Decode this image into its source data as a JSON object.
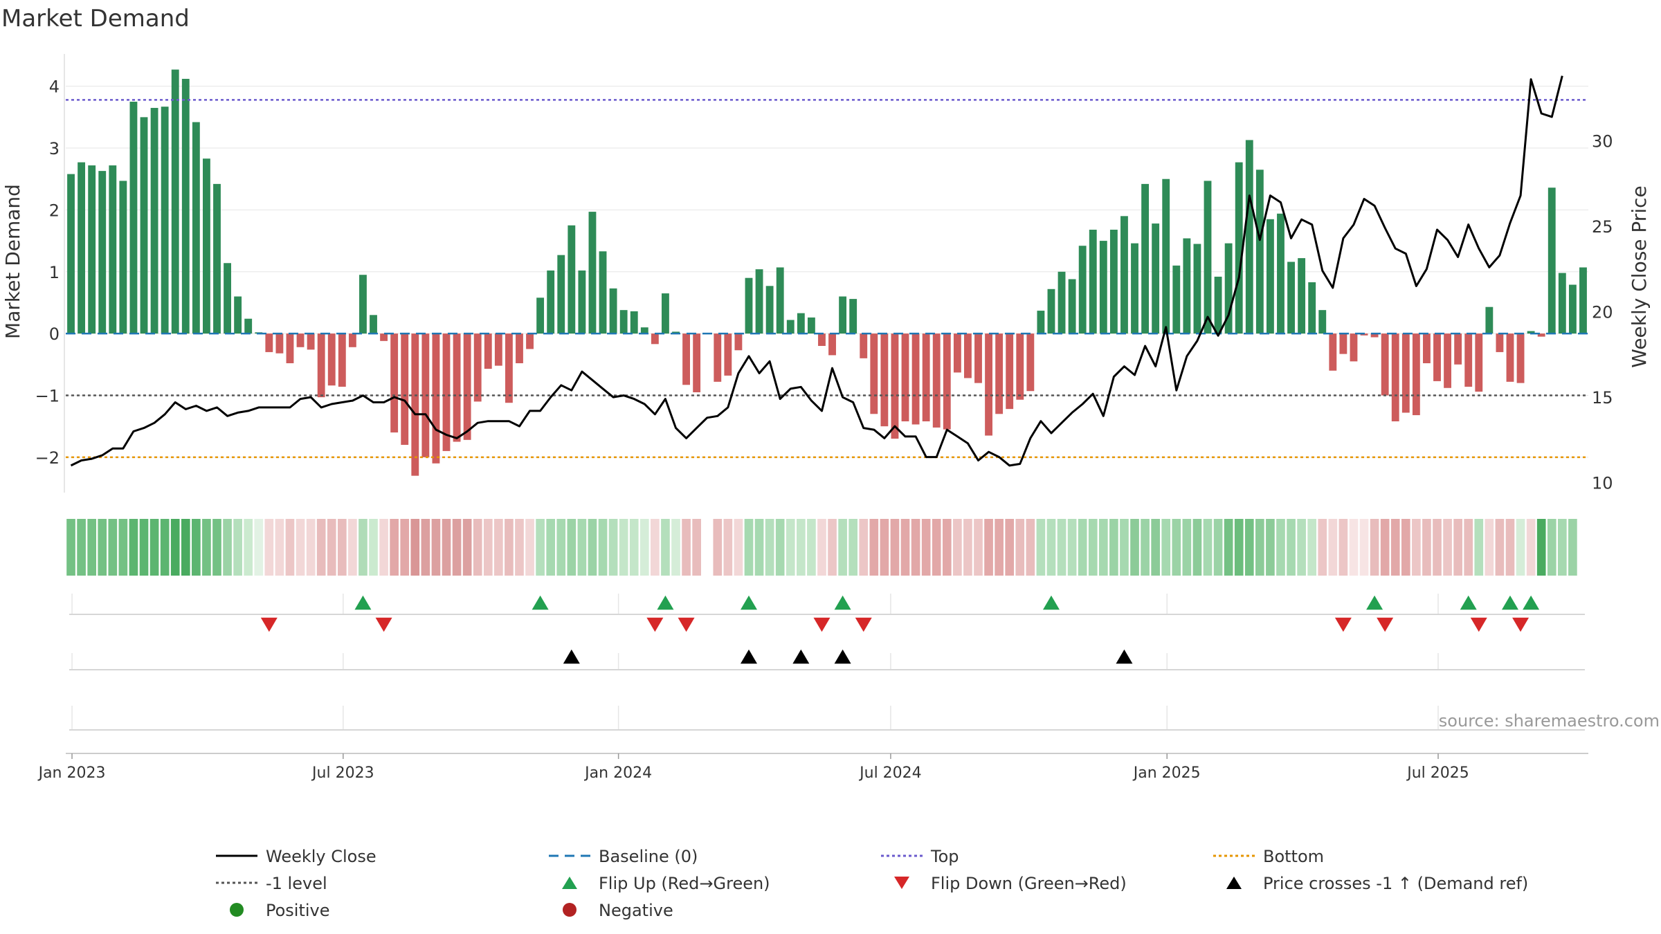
{
  "chart_data": {
    "type": "bar",
    "title": "Market Demand",
    "ylabel": "Market Demand",
    "y2label": "Weekly Close Price",
    "source": "source: sharemaestro.com",
    "ylim": [
      -2.55,
      4.5
    ],
    "y2lim": [
      9.5,
      35.0
    ],
    "yticks": [
      4,
      3,
      2,
      1,
      0,
      -1,
      -2
    ],
    "yticklabels": [
      "4",
      "3",
      "2",
      "1",
      "0",
      "−1",
      "−2"
    ],
    "y2ticks": [
      30,
      25,
      20,
      15,
      10
    ],
    "y2ticklabels": [
      "30",
      "25",
      "20",
      "15",
      "10"
    ],
    "xticks": [
      0.6,
      26.6,
      53.0,
      79.1,
      105.6,
      131.6
    ],
    "xticklabels": [
      "Jan 2023",
      "Jul 2023",
      "Jan 2024",
      "Jul 2024",
      "Jan 2025",
      "Jul 2025"
    ],
    "reference_lines": {
      "top": 3.78,
      "minus_one": -1.0,
      "bottom": -2.0,
      "baseline": 0
    },
    "colors": {
      "positive": "#2e8b57",
      "negative": "#cd5c5c",
      "close": "#000000",
      "baseline": "#1f77b4",
      "top": "#6a5acd",
      "minus_one": "#555555",
      "bottom": "#e69500",
      "flip_up": "#22a050",
      "flip_down": "#d62728",
      "cross": "#000000",
      "dot_positive": "#228b22",
      "dot_negative": "#b22222"
    },
    "demand": [
      2.58,
      2.77,
      2.72,
      2.63,
      2.72,
      2.47,
      3.75,
      3.5,
      3.65,
      3.67,
      4.27,
      4.12,
      3.42,
      2.83,
      2.42,
      1.14,
      0.6,
      0.24,
      0.02,
      -0.3,
      -0.32,
      -0.48,
      -0.22,
      -0.26,
      -1.03,
      -0.84,
      -0.86,
      -0.22,
      0.95,
      0.3,
      -0.12,
      -1.6,
      -1.8,
      -2.3,
      -2.0,
      -2.1,
      -1.9,
      -1.75,
      -1.72,
      -1.1,
      -0.57,
      -0.52,
      -1.12,
      -0.48,
      -0.25,
      0.58,
      1.02,
      1.27,
      1.75,
      1.02,
      1.97,
      1.33,
      0.73,
      0.38,
      0.36,
      0.1,
      -0.17,
      0.65,
      0.03,
      -0.83,
      -0.95,
      0,
      -0.78,
      -0.68,
      -0.27,
      0.9,
      1.04,
      0.77,
      1.07,
      0.22,
      0.33,
      0.26,
      -0.2,
      -0.35,
      0.6,
      0.56,
      -0.4,
      -1.3,
      -1.5,
      -1.7,
      -1.42,
      -1.47,
      -1.42,
      -1.52,
      -1.55,
      -0.63,
      -0.72,
      -0.8,
      -1.65,
      -1.3,
      -1.22,
      -1.07,
      -0.93,
      0.37,
      0.72,
      1.0,
      0.88,
      1.42,
      1.68,
      1.5,
      1.68,
      1.9,
      1.46,
      2.42,
      1.78,
      2.5,
      1.1,
      1.54,
      1.45,
      2.47,
      0.92,
      1.46,
      2.77,
      3.13,
      2.65,
      1.85,
      1.94,
      1.16,
      1.22,
      0.83,
      0.38,
      -0.6,
      -0.33,
      -0.45,
      -0.03,
      -0.06,
      -1.0,
      -1.42,
      -1.28,
      -1.32,
      -0.48,
      -0.77,
      -0.88,
      -0.5,
      -0.86,
      -0.94,
      0.43,
      -0.3,
      -0.78,
      -0.8,
      0.04,
      -0.05,
      2.36,
      0.98,
      0.79,
      1.07
    ],
    "close": [
      11.0,
      11.3,
      11.4,
      11.6,
      12.0,
      12.0,
      13.0,
      13.2,
      13.5,
      14.0,
      14.7,
      14.3,
      14.5,
      14.2,
      14.4,
      13.9,
      14.1,
      14.2,
      14.4,
      14.4,
      14.4,
      14.4,
      14.9,
      15.0,
      14.4,
      14.6,
      14.7,
      14.8,
      15.1,
      14.7,
      14.7,
      15.0,
      14.8,
      14.0,
      14.0,
      13.1,
      12.8,
      12.6,
      13.0,
      13.5,
      13.6,
      13.6,
      13.6,
      13.3,
      14.2,
      14.2,
      15.0,
      15.7,
      15.4,
      16.5,
      16.0,
      15.5,
      15.0,
      15.1,
      14.9,
      14.6,
      14.0,
      14.9,
      13.2,
      12.6,
      13.2,
      13.8,
      13.9,
      14.4,
      16.4,
      17.4,
      16.4,
      17.1,
      14.9,
      15.5,
      15.6,
      14.8,
      14.2,
      16.7,
      15.0,
      14.7,
      13.2,
      13.1,
      12.6,
      13.3,
      12.7,
      12.7,
      11.5,
      11.5,
      13.1,
      12.7,
      12.3,
      11.3,
      11.8,
      11.5,
      11.0,
      11.1,
      12.6,
      13.6,
      12.9,
      13.5,
      14.1,
      14.6,
      15.2,
      13.9,
      16.2,
      16.8,
      16.3,
      18.0,
      16.8,
      19.1,
      15.4,
      17.4,
      18.3,
      19.7,
      18.6,
      19.8,
      22.0,
      26.8,
      24.2,
      26.8,
      26.4,
      24.3,
      25.4,
      25.1,
      22.4,
      21.4,
      24.3,
      25.1,
      26.6,
      26.2,
      24.9,
      23.7,
      23.4,
      21.5,
      22.5,
      24.8,
      24.2,
      23.2,
      25.1,
      23.7,
      22.6,
      23.3,
      25.2,
      26.8,
      33.6,
      31.6,
      31.4,
      33.8
    ],
    "heatmap_counts": {
      "columns": 146,
      "gaps": [
        59,
        61
      ]
    },
    "heatmap_shades": [
      "#74c184",
      "#74c184",
      "#74c184",
      "#74c184",
      "#74c184",
      "#74c184",
      "#5cb570",
      "#5cb570",
      "#5cb570",
      "#5cb570",
      "#4aab60",
      "#4aab60",
      "#5cb570",
      "#74c184",
      "#74c184",
      "#9bd3a6",
      "#b4dfbc",
      "#cbeacf",
      "#e2f2e4",
      "#f2d7d7",
      "#f2d7d7",
      "#ecc6c6",
      "#f2d7d7",
      "#f2d7d7",
      "#e8bcbc",
      "#e8bcbc",
      "#e8bcbc",
      "#f2d7d7",
      "#b0dcb8",
      "#cbeacf",
      "#f2d7d7",
      "#e2a8a8",
      "#e2a8a8",
      "#d99696",
      "#dca0a0",
      "#dca0a0",
      "#dca0a0",
      "#dca0a0",
      "#dca0a0",
      "#e8bcbc",
      "#ecc6c6",
      "#ecc6c6",
      "#e8bcbc",
      "#ecc6c6",
      "#f2d7d7",
      "#b4dfbc",
      "#a6d9b0",
      "#a6d9b0",
      "#9bd3a6",
      "#a6d9b0",
      "#9bd3a6",
      "#a6d9b0",
      "#b4dfbc",
      "#c4e6c9",
      "#c4e6c9",
      "#d5edd8",
      "#f2d7d7",
      "#b4dfbc",
      "#d5edd8",
      "#e8bcbc",
      "#e8bcbc",
      "#ffffff",
      "#e8bcbc",
      "#ecc6c6",
      "#f2d7d7",
      "#a6d9b0",
      "#a6d9b0",
      "#b4dfbc",
      "#a6d9b0",
      "#c4e6c9",
      "#c4e6c9",
      "#c4e6c9",
      "#f2d7d7",
      "#ecc6c6",
      "#b4dfbc",
      "#b4dfbc",
      "#ecc6c6",
      "#e2a8a8",
      "#e2a8a8",
      "#e2a8a8",
      "#e2a8a8",
      "#e2a8a8",
      "#e2a8a8",
      "#e2a8a8",
      "#e2a8a8",
      "#ecc6c6",
      "#ecc6c6",
      "#ecc6c6",
      "#e2a8a8",
      "#e2a8a8",
      "#e2a8a8",
      "#e8bcbc",
      "#e8bcbc",
      "#b4dfbc",
      "#b4dfbc",
      "#b4dfbc",
      "#b4dfbc",
      "#a6d9b0",
      "#a6d9b0",
      "#a6d9b0",
      "#9bd3a6",
      "#a6d9b0",
      "#8ccb98",
      "#9bd3a6",
      "#8ccb98",
      "#a6d9b0",
      "#9bd3a6",
      "#9bd3a6",
      "#8ccb98",
      "#a6d9b0",
      "#9bd3a6",
      "#74c184",
      "#6bbd7c",
      "#74c184",
      "#8ccb98",
      "#8ccb98",
      "#a6d9b0",
      "#a6d9b0",
      "#b4dfbc",
      "#c4e6c9",
      "#ecc6c6",
      "#f2d7d7",
      "#ecc6c6",
      "#f7e4e4",
      "#f7e4e4",
      "#e8bcbc",
      "#e2a8a8",
      "#e2a8a8",
      "#e2a8a8",
      "#ecc6c6",
      "#e8bcbc",
      "#e8bcbc",
      "#ecc6c6",
      "#e8bcbc",
      "#e8bcbc",
      "#b4dfbc",
      "#f2d7d7",
      "#e8bcbc",
      "#e8bcbc",
      "#d5edd8",
      "#f2d7d7",
      "#4aab60",
      "#9bd3a6",
      "#a6d9b0",
      "#9bd3a6"
    ],
    "flip_up_weeks": [
      28,
      45,
      57,
      65,
      74,
      94,
      125,
      134,
      138,
      140
    ],
    "flip_down_weeks": [
      19,
      30,
      56,
      59,
      72,
      76,
      122,
      126,
      135,
      139
    ],
    "price_cross_weeks": [
      48,
      65,
      70,
      74,
      101
    ],
    "legend": [
      {
        "label": "Weekly Close",
        "kind": "line-solid"
      },
      {
        "label": "Baseline (0)",
        "kind": "line-dash"
      },
      {
        "label": "Top",
        "kind": "line-dot-top"
      },
      {
        "label": "Bottom",
        "kind": "line-dot-bottom"
      },
      {
        "label": "-1 level",
        "kind": "line-dot-minus"
      },
      {
        "label": "Flip Up (Red→Green)",
        "kind": "tri-up-green"
      },
      {
        "label": "Flip Down (Green→Red)",
        "kind": "tri-down-red"
      },
      {
        "label": "Price crosses -1 ↑ (Demand ref)",
        "kind": "tri-up-black"
      },
      {
        "label": "Positive",
        "kind": "dot-green"
      },
      {
        "label": "Negative",
        "kind": "dot-red"
      }
    ]
  }
}
